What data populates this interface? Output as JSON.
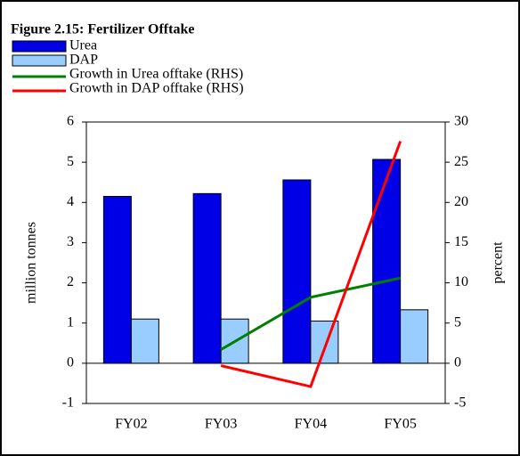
{
  "chart_data": {
    "type": "bar-line",
    "title": "Figure 2.15: Fertilizer Offtake",
    "ylabel": "million tonnes",
    "y2label": "percent",
    "categories": [
      "FY02",
      "FY03",
      "FY04",
      "FY05"
    ],
    "ylim": [
      -1,
      6
    ],
    "yticks": [
      -1,
      0,
      1,
      2,
      3,
      4,
      5,
      6
    ],
    "y2lim": [
      -5,
      30
    ],
    "y2ticks": [
      -5,
      0,
      5,
      10,
      15,
      20,
      25,
      30
    ],
    "series": [
      {
        "name": "Urea",
        "kind": "bar",
        "color": "#0000e6",
        "values": [
          4.15,
          4.22,
          4.56,
          5.07
        ]
      },
      {
        "name": "DAP",
        "kind": "bar",
        "color": "#99ccff",
        "values": [
          1.1,
          1.1,
          1.05,
          1.33
        ]
      },
      {
        "name": "Growth in Urea offtake (RHS)",
        "kind": "line",
        "axis": "y2",
        "color": "#008000",
        "values": [
          null,
          1.7,
          8.2,
          10.6
        ]
      },
      {
        "name": "Growth in DAP offtake (RHS)",
        "kind": "line",
        "axis": "y2",
        "color": "#ff0000",
        "values": [
          null,
          -0.3,
          -2.9,
          27.6
        ]
      }
    ]
  }
}
